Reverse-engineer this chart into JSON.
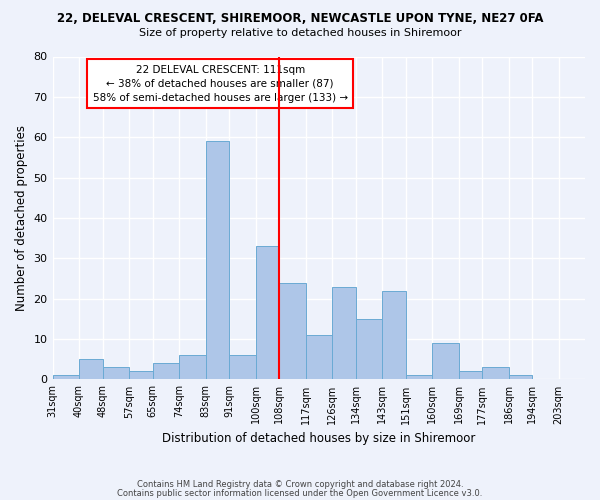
{
  "title": "22, DELEVAL CRESCENT, SHIREMOOR, NEWCASTLE UPON TYNE, NE27 0FA",
  "subtitle": "Size of property relative to detached houses in Shiremoor",
  "xlabel": "Distribution of detached houses by size in Shiremoor",
  "ylabel": "Number of detached properties",
  "footnote1": "Contains HM Land Registry data © Crown copyright and database right 2024.",
  "footnote2": "Contains public sector information licensed under the Open Government Licence v3.0.",
  "categories": [
    "31sqm",
    "40sqm",
    "48sqm",
    "57sqm",
    "65sqm",
    "74sqm",
    "83sqm",
    "91sqm",
    "100sqm",
    "108sqm",
    "117sqm",
    "126sqm",
    "134sqm",
    "143sqm",
    "151sqm",
    "160sqm",
    "169sqm",
    "177sqm",
    "186sqm",
    "194sqm",
    "203sqm"
  ],
  "values": [
    1,
    5,
    3,
    2,
    4,
    6,
    59,
    6,
    33,
    24,
    11,
    23,
    15,
    22,
    1,
    9,
    2,
    3,
    1,
    0,
    0
  ],
  "bar_color": "#aec6e8",
  "bar_edge_color": "#6aaad4",
  "background_color": "#eef2fb",
  "grid_color": "#ffffff",
  "property_line_x": 108,
  "bin_starts": [
    31,
    40,
    48,
    57,
    65,
    74,
    83,
    91,
    100,
    108,
    117,
    126,
    134,
    143,
    151,
    160,
    169,
    177,
    186,
    194,
    203
  ],
  "annotation_text": "22 DELEVAL CRESCENT: 111sqm\n← 38% of detached houses are smaller (87)\n58% of semi-detached houses are larger (133) →",
  "ylim": [
    0,
    80
  ],
  "yticks": [
    0,
    10,
    20,
    30,
    40,
    50,
    60,
    70,
    80
  ]
}
